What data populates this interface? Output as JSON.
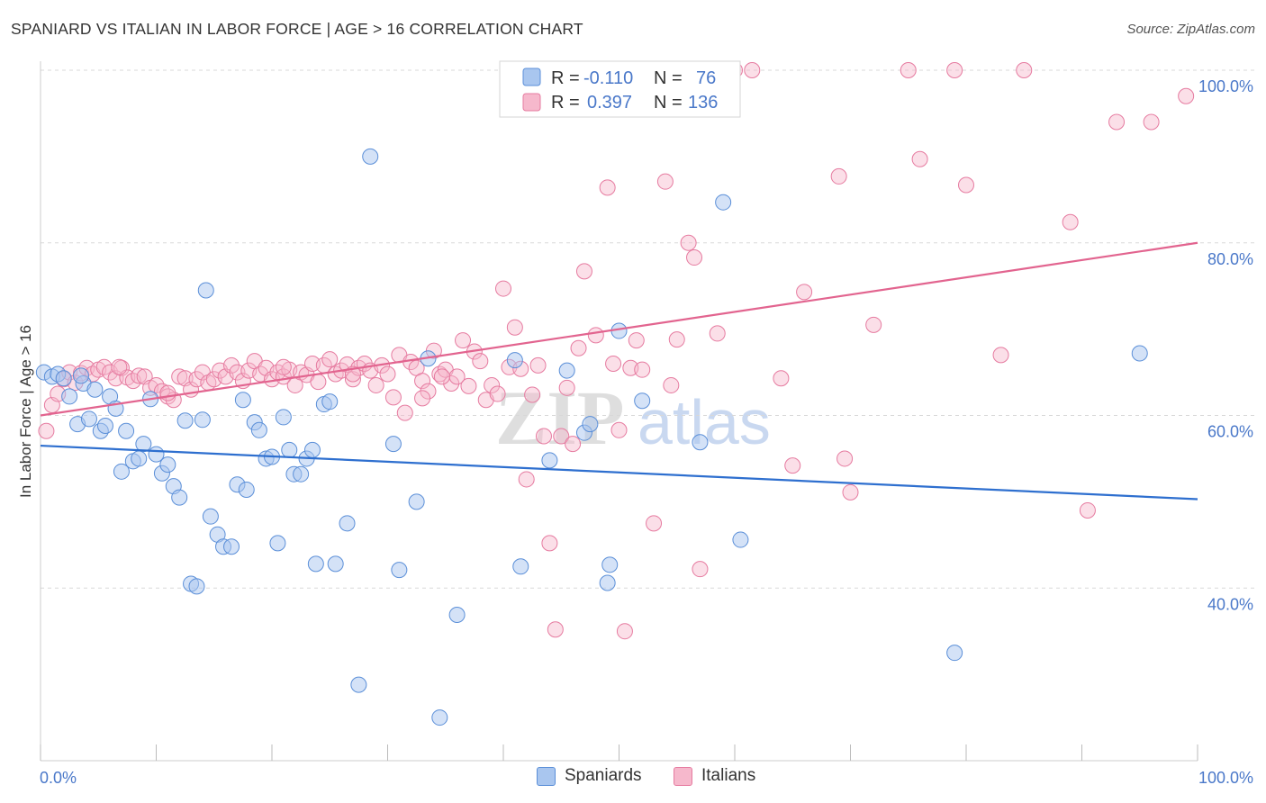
{
  "title": "SPANIARD VS ITALIAN IN LABOR FORCE | AGE > 16 CORRELATION CHART",
  "source": "Source: ZipAtlas.com",
  "watermark": {
    "zip": "ZIP",
    "atlas": "atlas"
  },
  "legend_box": {
    "rows": [
      {
        "r_label": "R =",
        "r_value": "-0.110",
        "n_label": "N =",
        "n_value": "76"
      },
      {
        "r_label": "R =",
        "r_value": "0.397",
        "n_label": "N =",
        "n_value": "136"
      }
    ]
  },
  "bottom_legend": {
    "spaniards": "Spaniards",
    "italians": "Italians"
  },
  "colors": {
    "spaniards_fill": "#a9c6ef",
    "spaniards_stroke": "#5b8fd8",
    "spaniards_line": "#2e6fcf",
    "italians_fill": "#f6b8cc",
    "italians_stroke": "#e67ba0",
    "italians_line": "#e2648f",
    "tick_text": "#4a78c9",
    "grid": "#d8d8d8"
  },
  "chart_data": {
    "type": "scatter",
    "title": "SPANIARD VS ITALIAN IN LABOR FORCE | AGE > 16 CORRELATION CHART",
    "xlabel": "",
    "ylabel": "In Labor Force | Age > 16",
    "xlim": [
      0,
      100
    ],
    "ylim": [
      20,
      100
    ],
    "x_tick_labels": [
      "0.0%",
      "100.0%"
    ],
    "y_ticks": [
      40,
      60,
      80,
      100
    ],
    "y_tick_labels": [
      "40.0%",
      "60.0%",
      "80.0%",
      "100.0%"
    ],
    "grid": "horizontal dashed",
    "legend_position": "top-center",
    "series": [
      {
        "name": "Spaniards",
        "r": -0.11,
        "n": 76,
        "trend": {
          "x": [
            0,
            100
          ],
          "y": [
            56.5,
            50.3
          ]
        },
        "points": [
          [
            0.3,
            65.0
          ],
          [
            1.0,
            64.5
          ],
          [
            1.5,
            64.8
          ],
          [
            2.0,
            64.3
          ],
          [
            2.5,
            62.2
          ],
          [
            3.2,
            59.0
          ],
          [
            3.7,
            63.7
          ],
          [
            4.2,
            59.6
          ],
          [
            4.7,
            63.0
          ],
          [
            5.2,
            58.2
          ],
          [
            5.6,
            58.8
          ],
          [
            6.0,
            62.2
          ],
          [
            6.5,
            60.8
          ],
          [
            7.0,
            53.5
          ],
          [
            7.4,
            58.2
          ],
          [
            8.0,
            54.7
          ],
          [
            8.5,
            55.0
          ],
          [
            8.9,
            56.7
          ],
          [
            9.5,
            61.9
          ],
          [
            10.0,
            55.5
          ],
          [
            10.5,
            53.3
          ],
          [
            11.0,
            54.3
          ],
          [
            11.5,
            51.8
          ],
          [
            12.0,
            50.5
          ],
          [
            12.5,
            59.4
          ],
          [
            13.0,
            40.5
          ],
          [
            13.5,
            40.2
          ],
          [
            14.0,
            59.5
          ],
          [
            14.3,
            74.5
          ],
          [
            14.7,
            48.3
          ],
          [
            15.3,
            46.2
          ],
          [
            15.8,
            44.8
          ],
          [
            16.5,
            44.8
          ],
          [
            17.0,
            52.0
          ],
          [
            17.5,
            61.8
          ],
          [
            17.8,
            51.4
          ],
          [
            18.5,
            59.2
          ],
          [
            18.9,
            58.3
          ],
          [
            19.5,
            55.0
          ],
          [
            20.0,
            55.2
          ],
          [
            20.5,
            45.2
          ],
          [
            21.0,
            59.8
          ],
          [
            21.5,
            56.0
          ],
          [
            21.9,
            53.2
          ],
          [
            22.5,
            53.2
          ],
          [
            23.0,
            55.0
          ],
          [
            23.5,
            56.0
          ],
          [
            23.8,
            42.8
          ],
          [
            24.5,
            61.3
          ],
          [
            25.0,
            61.6
          ],
          [
            25.5,
            42.8
          ],
          [
            26.5,
            47.5
          ],
          [
            27.5,
            28.8
          ],
          [
            28.5,
            90.0
          ],
          [
            30.5,
            56.7
          ],
          [
            31.0,
            42.1
          ],
          [
            32.5,
            50.0
          ],
          [
            33.5,
            66.6
          ],
          [
            34.5,
            25.0
          ],
          [
            36.0,
            36.9
          ],
          [
            41.0,
            66.4
          ],
          [
            41.5,
            42.5
          ],
          [
            44.0,
            54.8
          ],
          [
            45.5,
            65.2
          ],
          [
            47.0,
            58.0
          ],
          [
            47.5,
            59.0
          ],
          [
            49.0,
            40.6
          ],
          [
            49.2,
            42.7
          ],
          [
            50.0,
            69.8
          ],
          [
            52.0,
            61.7
          ],
          [
            57.0,
            56.9
          ],
          [
            59.0,
            84.7
          ],
          [
            60.5,
            45.6
          ],
          [
            79.0,
            32.5
          ],
          [
            95.0,
            67.2
          ],
          [
            3.5,
            64.6
          ]
        ]
      },
      {
        "name": "Italians",
        "r": 0.397,
        "n": 136,
        "trend": {
          "x": [
            0,
            100
          ],
          "y": [
            60.0,
            80.0
          ]
        },
        "points": [
          [
            0.5,
            58.2
          ],
          [
            1.0,
            61.2
          ],
          [
            1.5,
            62.5
          ],
          [
            2.0,
            64.2
          ],
          [
            2.5,
            65.0
          ],
          [
            3.0,
            63.8
          ],
          [
            3.5,
            64.9
          ],
          [
            4.0,
            65.5
          ],
          [
            4.5,
            64.8
          ],
          [
            5.0,
            65.3
          ],
          [
            5.5,
            65.6
          ],
          [
            6.0,
            65.0
          ],
          [
            6.5,
            64.3
          ],
          [
            7.0,
            65.5
          ],
          [
            7.5,
            64.4
          ],
          [
            8.0,
            64.0
          ],
          [
            8.5,
            64.6
          ],
          [
            9.0,
            64.5
          ],
          [
            9.5,
            63.2
          ],
          [
            10.0,
            63.5
          ],
          [
            10.5,
            62.8
          ],
          [
            11.0,
            62.2
          ],
          [
            11.5,
            61.8
          ],
          [
            12.0,
            64.5
          ],
          [
            12.5,
            64.3
          ],
          [
            13.0,
            63.0
          ],
          [
            13.5,
            64.2
          ],
          [
            14.0,
            65.0
          ],
          [
            14.5,
            63.8
          ],
          [
            15.0,
            64.2
          ],
          [
            15.5,
            65.2
          ],
          [
            16.0,
            64.5
          ],
          [
            16.5,
            65.8
          ],
          [
            17.0,
            65.0
          ],
          [
            17.5,
            64.0
          ],
          [
            18.0,
            65.2
          ],
          [
            18.5,
            66.3
          ],
          [
            19.0,
            64.8
          ],
          [
            19.5,
            65.5
          ],
          [
            20.0,
            64.2
          ],
          [
            20.5,
            65.0
          ],
          [
            21.0,
            64.5
          ],
          [
            21.5,
            65.3
          ],
          [
            22.0,
            63.5
          ],
          [
            22.5,
            65.0
          ],
          [
            23.0,
            64.7
          ],
          [
            23.5,
            66.0
          ],
          [
            24.0,
            63.9
          ],
          [
            24.5,
            65.8
          ],
          [
            25.0,
            66.5
          ],
          [
            25.5,
            64.8
          ],
          [
            26.0,
            65.2
          ],
          [
            26.5,
            65.9
          ],
          [
            27.0,
            64.2
          ],
          [
            27.5,
            65.5
          ],
          [
            28.0,
            66.0
          ],
          [
            28.5,
            65.2
          ],
          [
            29.0,
            63.5
          ],
          [
            29.5,
            65.8
          ],
          [
            30.0,
            64.8
          ],
          [
            30.5,
            62.1
          ],
          [
            31.0,
            67.0
          ],
          [
            31.5,
            60.3
          ],
          [
            32.0,
            66.2
          ],
          [
            32.5,
            65.5
          ],
          [
            33.0,
            64.0
          ],
          [
            33.5,
            62.8
          ],
          [
            34.0,
            67.5
          ],
          [
            34.5,
            64.8
          ],
          [
            35.0,
            65.3
          ],
          [
            35.5,
            63.7
          ],
          [
            36.0,
            64.5
          ],
          [
            36.5,
            68.7
          ],
          [
            37.0,
            63.4
          ],
          [
            37.5,
            67.4
          ],
          [
            38.0,
            66.3
          ],
          [
            38.5,
            61.8
          ],
          [
            39.0,
            63.5
          ],
          [
            39.5,
            62.5
          ],
          [
            40.0,
            74.7
          ],
          [
            40.5,
            65.6
          ],
          [
            41.0,
            70.2
          ],
          [
            41.5,
            65.4
          ],
          [
            42.0,
            52.6
          ],
          [
            42.5,
            62.4
          ],
          [
            43.0,
            65.8
          ],
          [
            43.5,
            57.6
          ],
          [
            44.0,
            45.2
          ],
          [
            44.5,
            35.2
          ],
          [
            45.0,
            57.6
          ],
          [
            45.5,
            63.2
          ],
          [
            46.0,
            56.7
          ],
          [
            46.5,
            67.8
          ],
          [
            47.0,
            76.7
          ],
          [
            48.0,
            69.3
          ],
          [
            49.0,
            86.4
          ],
          [
            50.0,
            58.3
          ],
          [
            50.5,
            35.0
          ],
          [
            51.0,
            65.5
          ],
          [
            51.5,
            68.7
          ],
          [
            52.0,
            65.3
          ],
          [
            53.0,
            47.5
          ],
          [
            54.0,
            87.1
          ],
          [
            54.5,
            63.5
          ],
          [
            55.0,
            68.8
          ],
          [
            56.0,
            80.0
          ],
          [
            56.5,
            78.3
          ],
          [
            57.0,
            42.2
          ],
          [
            58.5,
            69.5
          ],
          [
            60.0,
            100.0
          ],
          [
            61.5,
            100.0
          ],
          [
            64.0,
            64.3
          ],
          [
            65.0,
            54.2
          ],
          [
            66.0,
            74.3
          ],
          [
            69.0,
            87.7
          ],
          [
            69.5,
            55.0
          ],
          [
            70.0,
            51.1
          ],
          [
            72.0,
            70.5
          ],
          [
            75.0,
            100.0
          ],
          [
            76.0,
            89.7
          ],
          [
            79.0,
            100.0
          ],
          [
            80.0,
            86.7
          ],
          [
            83.0,
            67.0
          ],
          [
            85.0,
            100.0
          ],
          [
            89.0,
            82.4
          ],
          [
            90.5,
            49.0
          ],
          [
            93.0,
            94.0
          ],
          [
            96.0,
            94.0
          ],
          [
            99.0,
            97.0
          ],
          [
            49.5,
            66.0
          ],
          [
            27.0,
            64.8
          ],
          [
            21.0,
            65.6
          ],
          [
            11.0,
            62.6
          ],
          [
            6.8,
            65.6
          ],
          [
            33.0,
            62.0
          ],
          [
            34.7,
            64.5
          ]
        ]
      }
    ]
  }
}
